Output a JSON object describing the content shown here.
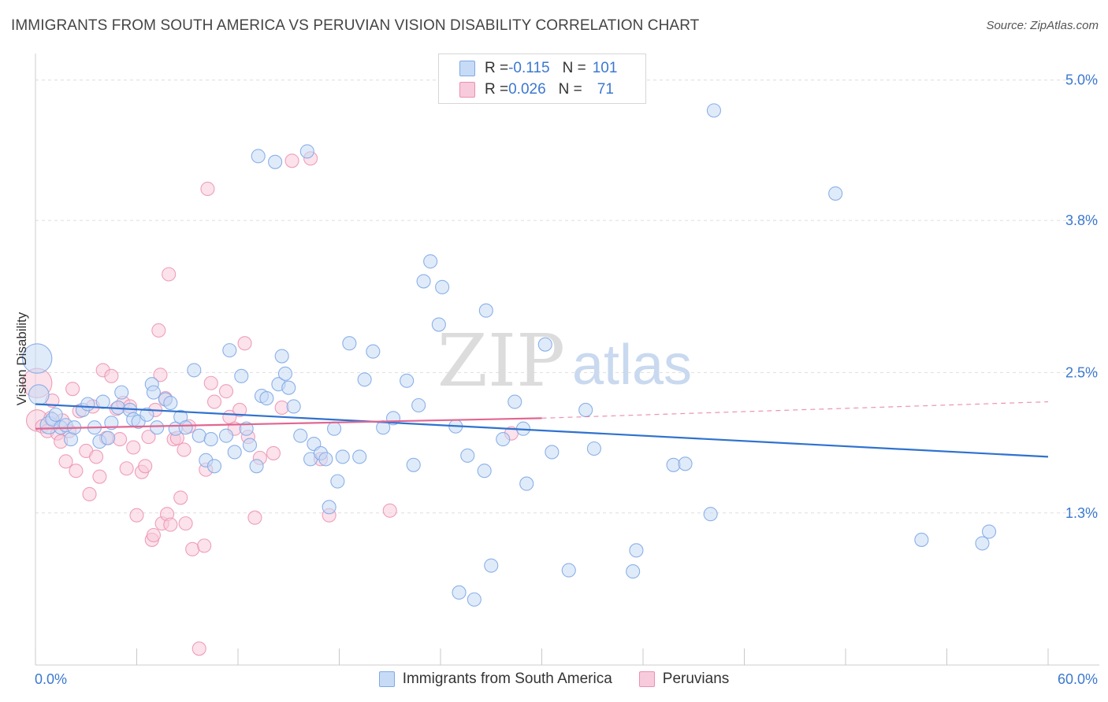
{
  "title": "IMMIGRANTS FROM SOUTH AMERICA VS PERUVIAN VISION DISABILITY CORRELATION CHART",
  "source": "Source: ZipAtlas.com",
  "watermark": {
    "zip": "ZIP",
    "atlas": "atlas"
  },
  "legend": {
    "row1": {
      "r_label": "R = ",
      "r_value": "-0.115",
      "n_label": "N = ",
      "n_value": "101"
    },
    "row2": {
      "r_label": "R = ",
      "r_value": "0.026",
      "n_label": "N = ",
      "n_value": "71"
    }
  },
  "bottom_legend": {
    "series1": "Immigrants from South America",
    "series2": "Peruvians"
  },
  "colors": {
    "blue": "#7fa9e6",
    "blue_fill": "#c7dbf6",
    "blue_line": "#2f72cf",
    "pink": "#ec8fb0",
    "pink_fill": "#f7cbdb",
    "pink_line": "#e2668f",
    "value_text": "#3b78d0"
  },
  "chart_data": {
    "type": "scatter",
    "title": "IMMIGRANTS FROM SOUTH AMERICA VS PERUVIAN VISION DISABILITY CORRELATION CHART",
    "xlabel": "",
    "ylabel": "Vision Disability",
    "xlim": [
      0,
      60
    ],
    "ylim": [
      0,
      5.2
    ],
    "x_tick_labels": [
      "0.0%",
      "60.0%"
    ],
    "y_ticks": [
      1.3,
      2.5,
      3.8,
      5.0
    ],
    "y_tick_labels": [
      "1.3%",
      "2.5%",
      "3.8%",
      "5.0%"
    ],
    "legend_position": "top-center",
    "series": [
      {
        "name": "Immigrants from South America",
        "color": "#7fa9e6",
        "r": -0.115,
        "n": 101,
        "trend": {
          "x": [
            0,
            60
          ],
          "y": [
            2.23,
            1.78
          ]
        },
        "points": [
          [
            0.1,
            2.62,
            2.2
          ],
          [
            0.2,
            2.31,
            1.5
          ],
          [
            0.8,
            2.05,
            1.3
          ],
          [
            1.0,
            2.1,
            1.0
          ],
          [
            1.2,
            2.14,
            1.0
          ],
          [
            1.5,
            2.03,
            1.0
          ],
          [
            1.8,
            2.05,
            1.0
          ],
          [
            2.1,
            1.93,
            1.0
          ],
          [
            2.3,
            2.03,
            1.0
          ],
          [
            2.8,
            2.18,
            1.0
          ],
          [
            3.1,
            2.23,
            1.0
          ],
          [
            3.5,
            2.03,
            1.0
          ],
          [
            3.8,
            1.91,
            1.0
          ],
          [
            4.0,
            2.25,
            1.0
          ],
          [
            4.3,
            1.94,
            1.0
          ],
          [
            4.5,
            2.07,
            1.0
          ],
          [
            4.9,
            2.2,
            1.0
          ],
          [
            5.1,
            2.33,
            1.0
          ],
          [
            5.6,
            2.18,
            1.0
          ],
          [
            5.8,
            2.1,
            1.0
          ],
          [
            6.1,
            2.08,
            1.0
          ],
          [
            6.6,
            2.14,
            1.0
          ],
          [
            6.9,
            2.4,
            1.0
          ],
          [
            7.0,
            2.33,
            1.0
          ],
          [
            7.2,
            2.03,
            1.0
          ],
          [
            7.7,
            2.27,
            1.0
          ],
          [
            8.0,
            2.24,
            1.0
          ],
          [
            8.3,
            2.02,
            1.0
          ],
          [
            8.6,
            2.12,
            1.0
          ],
          [
            8.9,
            2.03,
            1.0
          ],
          [
            9.4,
            2.52,
            1.0
          ],
          [
            9.7,
            1.96,
            1.0
          ],
          [
            10.1,
            1.75,
            1.0
          ],
          [
            10.4,
            1.93,
            1.0
          ],
          [
            10.6,
            1.7,
            1.0
          ],
          [
            11.3,
            1.96,
            1.0
          ],
          [
            11.5,
            2.69,
            1.0
          ],
          [
            11.8,
            1.82,
            1.0
          ],
          [
            12.2,
            2.47,
            1.0
          ],
          [
            12.5,
            2.02,
            1.0
          ],
          [
            12.7,
            1.88,
            1.0
          ],
          [
            13.1,
            1.7,
            1.0
          ],
          [
            13.2,
            4.35,
            1.0
          ],
          [
            13.4,
            2.3,
            1.0
          ],
          [
            13.7,
            2.28,
            1.0
          ],
          [
            14.2,
            4.3,
            1.0
          ],
          [
            14.4,
            2.4,
            1.0
          ],
          [
            14.6,
            2.64,
            1.0
          ],
          [
            14.8,
            2.49,
            1.0
          ],
          [
            15.0,
            2.37,
            1.0
          ],
          [
            15.3,
            2.21,
            1.0
          ],
          [
            15.7,
            1.96,
            1.0
          ],
          [
            16.1,
            4.39,
            1.0
          ],
          [
            16.3,
            1.76,
            1.0
          ],
          [
            16.5,
            1.89,
            1.0
          ],
          [
            16.9,
            1.81,
            1.0
          ],
          [
            17.2,
            1.76,
            1.0
          ],
          [
            17.4,
            1.35,
            1.0
          ],
          [
            17.7,
            2.02,
            1.0
          ],
          [
            17.9,
            1.57,
            1.0
          ],
          [
            18.2,
            1.78,
            1.0
          ],
          [
            18.6,
            2.75,
            1.0
          ],
          [
            19.2,
            1.78,
            1.0
          ],
          [
            19.5,
            2.44,
            1.0
          ],
          [
            20.0,
            2.68,
            1.0
          ],
          [
            20.6,
            2.03,
            1.0
          ],
          [
            21.2,
            2.11,
            1.0
          ],
          [
            22.0,
            2.43,
            1.0
          ],
          [
            22.4,
            1.71,
            1.0
          ],
          [
            22.7,
            2.22,
            1.0
          ],
          [
            23.0,
            3.28,
            1.0
          ],
          [
            23.4,
            3.45,
            1.0
          ],
          [
            23.9,
            2.91,
            1.0
          ],
          [
            24.1,
            3.23,
            1.0
          ],
          [
            24.9,
            2.04,
            1.0
          ],
          [
            25.1,
            0.62,
            1.0
          ],
          [
            25.6,
            1.79,
            1.0
          ],
          [
            26.0,
            0.56,
            1.0
          ],
          [
            26.6,
            1.66,
            1.0
          ],
          [
            26.7,
            3.03,
            1.0
          ],
          [
            27.0,
            0.85,
            1.0
          ],
          [
            27.7,
            1.93,
            1.0
          ],
          [
            28.4,
            2.25,
            1.0
          ],
          [
            28.9,
            2.02,
            1.0
          ],
          [
            29.1,
            1.55,
            1.0
          ],
          [
            30.2,
            2.74,
            1.0
          ],
          [
            30.6,
            1.82,
            1.0
          ],
          [
            31.6,
            0.81,
            1.0
          ],
          [
            32.6,
            2.18,
            1.0
          ],
          [
            33.1,
            1.85,
            1.0
          ],
          [
            35.4,
            0.8,
            1.0
          ],
          [
            35.6,
            0.98,
            1.0
          ],
          [
            37.8,
            1.71,
            1.0
          ],
          [
            38.5,
            1.72,
            1.0
          ],
          [
            40.0,
            1.29,
            1.0
          ],
          [
            40.2,
            4.74,
            1.0
          ],
          [
            47.4,
            4.03,
            1.0
          ],
          [
            52.5,
            1.07,
            1.0
          ],
          [
            56.1,
            1.04,
            1.0
          ],
          [
            56.5,
            1.14,
            1.0
          ]
        ]
      },
      {
        "name": "Peruvians",
        "color": "#ec8fb0",
        "r": 0.026,
        "n": 71,
        "trend": {
          "x": [
            0,
            30
          ],
          "y": [
            2.02,
            2.11
          ]
        },
        "trend_dashed": {
          "x": [
            30,
            60
          ],
          "y": [
            2.11,
            2.25
          ]
        },
        "points": [
          [
            0.1,
            2.41,
            2.2
          ],
          [
            0.1,
            2.09,
            1.6
          ],
          [
            0.4,
            2.04,
            1.0
          ],
          [
            0.7,
            2.0,
            1.0
          ],
          [
            0.9,
            2.11,
            1.0
          ],
          [
            1.0,
            2.26,
            1.0
          ],
          [
            1.3,
            1.98,
            1.0
          ],
          [
            1.5,
            1.91,
            1.0
          ],
          [
            1.6,
            2.09,
            1.0
          ],
          [
            1.8,
            1.74,
            1.0
          ],
          [
            2.0,
            2.0,
            1.0
          ],
          [
            2.2,
            2.36,
            1.0
          ],
          [
            2.4,
            1.66,
            1.0
          ],
          [
            2.6,
            2.17,
            1.0
          ],
          [
            3.0,
            1.83,
            1.0
          ],
          [
            3.2,
            1.46,
            1.0
          ],
          [
            3.4,
            2.21,
            1.0
          ],
          [
            3.6,
            1.78,
            1.0
          ],
          [
            3.8,
            1.61,
            1.0
          ],
          [
            4.0,
            2.52,
            1.0
          ],
          [
            4.2,
            1.94,
            1.0
          ],
          [
            4.5,
            2.47,
            1.0
          ],
          [
            4.8,
            2.19,
            1.0
          ],
          [
            5.0,
            1.93,
            1.0
          ],
          [
            5.2,
            2.24,
            1.0
          ],
          [
            5.4,
            1.68,
            1.0
          ],
          [
            5.6,
            2.21,
            1.0
          ],
          [
            5.8,
            1.86,
            1.0
          ],
          [
            6.0,
            1.28,
            1.0
          ],
          [
            6.3,
            1.65,
            1.0
          ],
          [
            6.5,
            1.7,
            1.0
          ],
          [
            6.7,
            1.95,
            1.0
          ],
          [
            6.9,
            1.07,
            1.0
          ],
          [
            7.0,
            1.11,
            1.0
          ],
          [
            7.1,
            2.18,
            1.0
          ],
          [
            7.3,
            2.86,
            1.0
          ],
          [
            7.4,
            2.48,
            1.0
          ],
          [
            7.5,
            1.21,
            1.0
          ],
          [
            7.7,
            2.28,
            1.0
          ],
          [
            7.8,
            1.29,
            1.0
          ],
          [
            7.9,
            3.34,
            1.0
          ],
          [
            8.0,
            1.2,
            1.0
          ],
          [
            8.2,
            1.93,
            1.0
          ],
          [
            8.4,
            1.94,
            1.0
          ],
          [
            8.6,
            1.43,
            1.0
          ],
          [
            8.8,
            1.84,
            1.0
          ],
          [
            8.9,
            1.21,
            1.0
          ],
          [
            9.1,
            2.04,
            1.0
          ],
          [
            9.3,
            0.99,
            1.0
          ],
          [
            9.7,
            0.14,
            1.0
          ],
          [
            10.0,
            1.02,
            1.0
          ],
          [
            10.1,
            1.67,
            1.0
          ],
          [
            10.2,
            4.07,
            1.0
          ],
          [
            10.4,
            2.41,
            1.0
          ],
          [
            10.6,
            2.25,
            1.0
          ],
          [
            11.3,
            2.34,
            1.0
          ],
          [
            11.5,
            2.12,
            1.0
          ],
          [
            11.8,
            2.02,
            1.0
          ],
          [
            12.1,
            2.18,
            1.0
          ],
          [
            12.4,
            2.75,
            1.0
          ],
          [
            12.6,
            1.95,
            1.0
          ],
          [
            13.0,
            1.26,
            1.0
          ],
          [
            13.3,
            1.77,
            1.0
          ],
          [
            14.1,
            1.81,
            1.0
          ],
          [
            14.6,
            2.2,
            1.0
          ],
          [
            15.2,
            4.31,
            1.0
          ],
          [
            16.3,
            4.33,
            1.0
          ],
          [
            16.9,
            1.76,
            1.0
          ],
          [
            17.4,
            1.28,
            1.0
          ],
          [
            21.0,
            1.32,
            1.0
          ],
          [
            28.2,
            1.98,
            1.0
          ]
        ]
      }
    ]
  }
}
